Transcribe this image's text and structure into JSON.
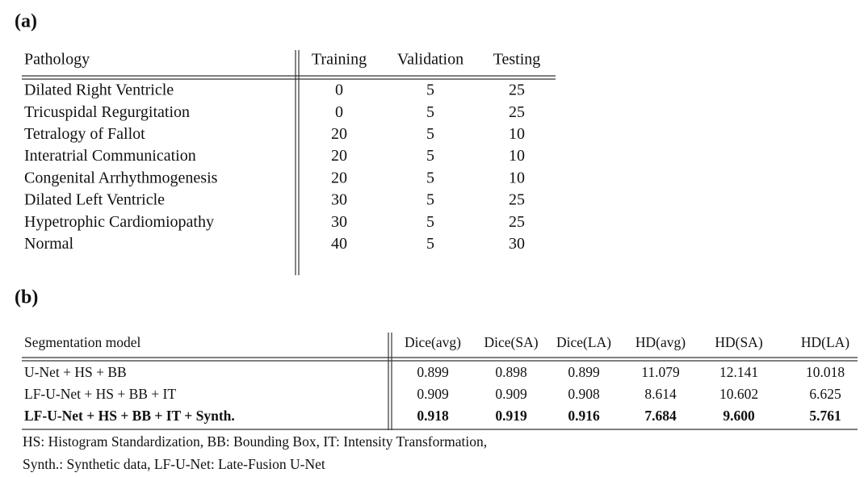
{
  "panel_a": {
    "label": "(a)",
    "table": {
      "header": [
        "Pathology",
        "Training",
        "Validation",
        "Testing"
      ],
      "rows": [
        [
          "Dilated Right Ventricle",
          "0",
          "5",
          "25"
        ],
        [
          "Tricuspidal Regurgitation",
          "0",
          "5",
          "25"
        ],
        [
          "Tetralogy of Fallot",
          "20",
          "5",
          "10"
        ],
        [
          "Interatrial Communication",
          "20",
          "5",
          "10"
        ],
        [
          "Congenital Arrhythmogenesis",
          "20",
          "5",
          "10"
        ],
        [
          "Dilated Left Ventricle",
          "30",
          "5",
          "25"
        ],
        [
          "Hypetrophic Cardiomiopathy",
          "30",
          "5",
          "25"
        ],
        [
          "Normal",
          "40",
          "5",
          "30"
        ]
      ]
    }
  },
  "panel_b": {
    "label": "(b)",
    "table": {
      "header": [
        "Segmentation model",
        "Dice(avg)",
        "Dice(SA)",
        "Dice(LA)",
        "HD(avg)",
        "HD(SA)",
        "HD(LA)"
      ],
      "rows": [
        [
          "U-Net + HS + BB",
          "0.899",
          "0.898",
          "0.899",
          "11.079",
          "12.141",
          "10.018"
        ],
        [
          "LF-U-Net + HS + BB + IT",
          "0.909",
          "0.909",
          "0.908",
          "8.614",
          "10.602",
          "6.625"
        ],
        [
          "LF-U-Net + HS + BB + IT + Synth.",
          "0.918",
          "0.919",
          "0.916",
          "7.684",
          "9.600",
          "5.761"
        ]
      ]
    },
    "footnote": [
      "HS: Histogram Standardization, BB: Bounding Box, IT: Intensity Transformation,",
      "Synth.: Synthetic data, LF-U-Net: Late-Fusion U-Net"
    ]
  }
}
